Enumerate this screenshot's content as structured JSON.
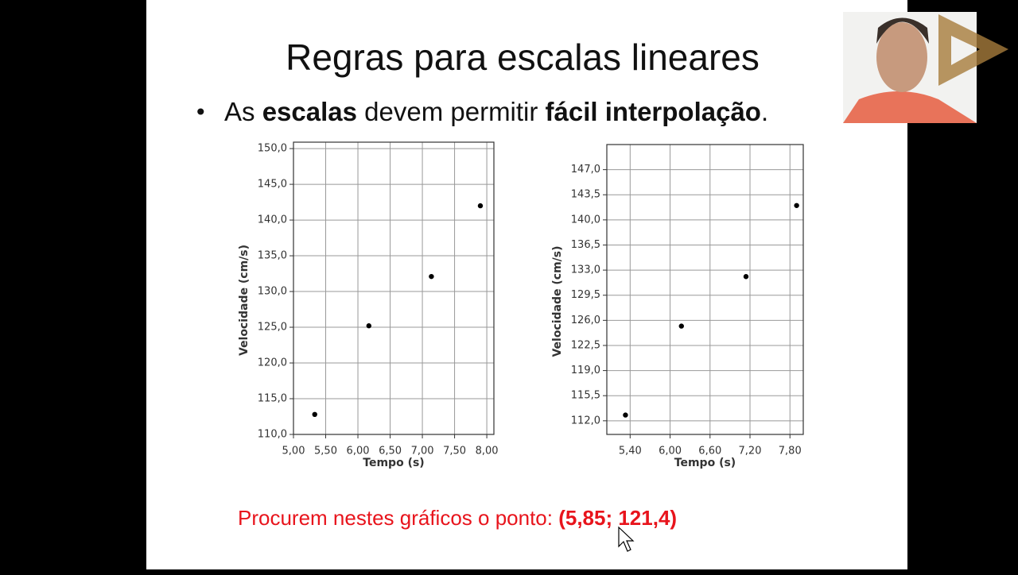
{
  "slide_title": "Regras para escalas lineares",
  "bullet": [
    "As ",
    "escalas",
    " devem permitir ",
    "fácil interpolação",
    "."
  ],
  "footer": [
    "Procurem nestes gráficos o ponto: ",
    "(5,85; 121,4)"
  ],
  "chart_data": [
    {
      "type": "scatter",
      "x_label": "Tempo (s)",
      "y_label": "Velocidade (cm/s)",
      "x": [
        5.33,
        6.17,
        7.14,
        7.9
      ],
      "values": [
        112.8,
        125.2,
        132.1,
        142.0
      ],
      "color": "#000000",
      "xlim": [
        5.0,
        8.11
      ],
      "ylim": [
        110,
        150.9
      ],
      "grid": true,
      "xticks": [
        {
          "value": 5,
          "label": "5,00"
        },
        {
          "value": 5.5,
          "label": "5,50"
        },
        {
          "value": 6,
          "label": "6,00"
        },
        {
          "value": 6.5,
          "label": "6,50"
        },
        {
          "value": 7,
          "label": "7,00"
        },
        {
          "value": 7.5,
          "label": "7,50"
        },
        {
          "value": 8,
          "label": "8,00"
        }
      ],
      "yticks": [
        {
          "value": 110,
          "label": "110,0"
        },
        {
          "value": 115,
          "label": "115,0"
        },
        {
          "value": 120,
          "label": "120,0"
        },
        {
          "value": 125,
          "label": "125,0"
        },
        {
          "value": 130,
          "label": "130,0"
        },
        {
          "value": 135,
          "label": "135,0"
        },
        {
          "value": 140,
          "label": "140,0"
        },
        {
          "value": 145,
          "label": "145,0"
        },
        {
          "value": 150,
          "label": "150,0"
        }
      ]
    },
    {
      "type": "scatter",
      "x_label": "Tempo (s)",
      "y_label": "Velocidade (cm/s)",
      "x": [
        5.33,
        6.17,
        7.14,
        7.9
      ],
      "values": [
        112.8,
        125.2,
        132.1,
        142.0
      ],
      "color": "#000000",
      "xlim": [
        5.05,
        8.0
      ],
      "ylim": [
        110.1,
        150.5
      ],
      "grid": true,
      "xticks": [
        {
          "value": 5.4,
          "label": "5,40"
        },
        {
          "value": 6,
          "label": "6,00"
        },
        {
          "value": 6.6,
          "label": "6,60"
        },
        {
          "value": 7.2,
          "label": "7,20"
        },
        {
          "value": 7.8,
          "label": "7,80"
        }
      ],
      "yticks": [
        {
          "value": 112,
          "label": "112,0"
        },
        {
          "value": 115.5,
          "label": "115,5"
        },
        {
          "value": 119,
          "label": "119,0"
        },
        {
          "value": 122.5,
          "label": "122,5"
        },
        {
          "value": 126,
          "label": "126,0"
        },
        {
          "value": 129.5,
          "label": "129,5"
        },
        {
          "value": 133,
          "label": "133,0"
        },
        {
          "value": 136.5,
          "label": "136,5"
        },
        {
          "value": 140,
          "label": "140,0"
        },
        {
          "value": 143.5,
          "label": "143,5"
        },
        {
          "value": 147,
          "label": "147,0"
        }
      ]
    }
  ]
}
